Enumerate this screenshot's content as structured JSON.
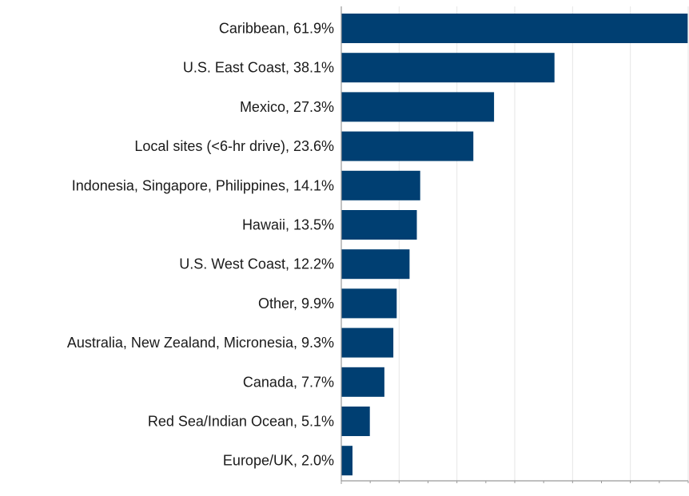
{
  "chart_data": {
    "type": "bar",
    "orientation": "horizontal",
    "categories": [
      "Caribbean, 61.9%",
      "U.S. East Coast, 38.1%",
      "Mexico, 27.3%",
      "Local sites (<6-hr drive), 23.6%",
      "Indonesia, Singapore, Philippines, 14.1%",
      "Hawaii, 13.5%",
      "U.S. West Coast, 12.2%",
      "Other, 9.9%",
      "Australia, New Zealand, Micronesia, 9.3%",
      "Canada, 7.7%",
      "Red Sea/Indian Ocean, 5.1%",
      "Europe/UK, 2.0%"
    ],
    "values": [
      61.9,
      38.1,
      27.3,
      23.6,
      14.1,
      13.5,
      12.2,
      9.9,
      9.3,
      7.7,
      5.1,
      2.0
    ],
    "xlim": [
      0,
      62
    ],
    "grid": true,
    "title": "",
    "xlabel": "",
    "ylabel": "",
    "colors": {
      "bar": "#003f72",
      "axis": "#999999",
      "grid": "#e6e6e6"
    }
  }
}
